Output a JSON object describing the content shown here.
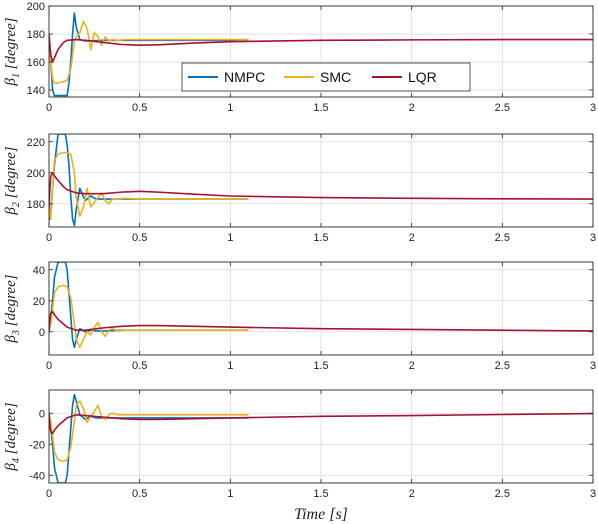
{
  "chart_data": {
    "type": "line",
    "xlabel": "Time [s]",
    "xlim": [
      0,
      3
    ],
    "xticks": [
      0,
      0.5,
      1,
      1.5,
      2,
      2.5,
      3
    ],
    "xticklabels": [
      "0",
      "0.5",
      "1",
      "1.5",
      "2",
      "2.5",
      "3"
    ],
    "grid": true,
    "legend": {
      "placement": "inside first panel, center",
      "entries": [
        "NMPC",
        "SMC",
        "LQR"
      ]
    },
    "colors": {
      "NMPC": "#0072BD",
      "SMC": "#EDB120",
      "LQR": "#A2142F"
    },
    "panels": [
      {
        "ylabel_var": "β",
        "ylabel_sub": "1",
        "ylabel_unit": "[degree]",
        "ylim": [
          135,
          200
        ],
        "yticks": [
          140,
          160,
          180,
          200
        ],
        "yticklabels": [
          "140",
          "160",
          "180",
          "200"
        ],
        "series": [
          {
            "name": "NMPC",
            "x": [
              0,
              0.005,
              0.01,
              0.02,
              0.03,
              0.04,
              0.05,
              0.07,
              0.09,
              0.1,
              0.11,
              0.12,
              0.13,
              0.14,
              0.15,
              0.17,
              0.2,
              0.3,
              0.5,
              1.0,
              1.1
            ],
            "y": [
              178,
              170,
              160,
              140,
              136,
              136,
              136,
              136,
              136,
              136,
              145,
              160,
              180,
              195,
              185,
              176,
              175,
              175.5,
              175.5,
              175.5,
              176
            ]
          },
          {
            "name": "SMC",
            "x": [
              0,
              0.005,
              0.01,
              0.02,
              0.03,
              0.05,
              0.08,
              0.1,
              0.12,
              0.14,
              0.15,
              0.17,
              0.19,
              0.21,
              0.23,
              0.25,
              0.27,
              0.29,
              0.31,
              0.33,
              0.35,
              0.38,
              0.42,
              0.5,
              0.7,
              1.0,
              1.1
            ],
            "y": [
              178,
              170,
              160,
              148,
              145,
              145,
              146,
              147,
              155,
              175,
              178,
              181,
              189,
              184,
              169,
              181,
              178,
              172,
              178,
              175,
              176,
              175.5,
              176,
              176,
              176,
              176,
              176
            ]
          },
          {
            "name": "LQR",
            "x": [
              0,
              0.005,
              0.01,
              0.02,
              0.03,
              0.05,
              0.08,
              0.1,
              0.15,
              0.2,
              0.3,
              0.4,
              0.5,
              0.6,
              0.8,
              1.0,
              1.5,
              2.0,
              2.5,
              3.0
            ],
            "y": [
              180,
              172,
              165,
              160,
              163,
              169,
              174,
              175.5,
              176,
              175.5,
              174,
              172.5,
              172,
              172.3,
              173.5,
              174.5,
              175.5,
              175.8,
              176,
              176
            ]
          }
        ]
      },
      {
        "ylabel_var": "β",
        "ylabel_sub": "2",
        "ylabel_unit": "[degree]",
        "ylim": [
          165,
          225
        ],
        "yticks": [
          180,
          200,
          220
        ],
        "yticklabels": [
          "180",
          "200",
          "220"
        ],
        "series": [
          {
            "name": "NMPC",
            "x": [
              0,
              0.005,
              0.01,
              0.02,
              0.03,
              0.05,
              0.07,
              0.09,
              0.1,
              0.11,
              0.12,
              0.13,
              0.14,
              0.15,
              0.17,
              0.2,
              0.23,
              0.26,
              0.3,
              0.4,
              0.6,
              1.0,
              1.1
            ],
            "y": [
              180,
              170,
              175,
              190,
              205,
              225,
              225,
              225,
              218,
              205,
              185,
              170,
              166,
              176,
              190,
              182,
              185,
              183,
              183,
              183,
              183,
              183,
              183
            ]
          },
          {
            "name": "SMC",
            "x": [
              0,
              0.005,
              0.01,
              0.02,
              0.03,
              0.05,
              0.08,
              0.1,
              0.12,
              0.14,
              0.15,
              0.17,
              0.19,
              0.21,
              0.23,
              0.25,
              0.27,
              0.29,
              0.31,
              0.33,
              0.35,
              0.38,
              0.42,
              0.5,
              0.7,
              1.0,
              1.1
            ],
            "y": [
              182,
              172,
              170,
              190,
              208,
              212,
              213,
              213,
              212,
              200,
              184,
              172,
              178,
              190,
              178,
              181,
              184,
              187,
              182,
              180,
              183,
              183,
              183.5,
              183,
              183,
              183,
              183
            ]
          },
          {
            "name": "LQR",
            "x": [
              0,
              0.005,
              0.01,
              0.02,
              0.03,
              0.05,
              0.08,
              0.1,
              0.15,
              0.2,
              0.3,
              0.4,
              0.5,
              0.6,
              0.8,
              1.0,
              1.5,
              2.0,
              2.5,
              3.0
            ],
            "y": [
              178,
              190,
              198,
              200,
              198,
              195,
              191,
              189,
              187,
              186.5,
              186.5,
              187.5,
              188,
              187.5,
              186.2,
              185,
              184,
              183.5,
              183.2,
              183
            ]
          }
        ]
      },
      {
        "ylabel_var": "β",
        "ylabel_sub": "3",
        "ylabel_unit": "[degree]",
        "ylim": [
          -15,
          45
        ],
        "yticks": [
          0,
          20,
          40
        ],
        "yticklabels": [
          "0",
          "20",
          "40"
        ],
        "series": [
          {
            "name": "NMPC",
            "x": [
              0,
              0.005,
              0.01,
              0.02,
              0.03,
              0.05,
              0.07,
              0.09,
              0.1,
              0.11,
              0.12,
              0.13,
              0.14,
              0.15,
              0.17,
              0.2,
              0.23,
              0.26,
              0.3,
              0.4,
              0.6,
              1.0,
              1.1
            ],
            "y": [
              0,
              5,
              10,
              20,
              35,
              45,
              45,
              45,
              40,
              25,
              10,
              -5,
              -10,
              -5,
              2,
              0,
              1,
              0.5,
              0.5,
              1,
              1,
              1,
              1
            ]
          },
          {
            "name": "SMC",
            "x": [
              0,
              0.005,
              0.01,
              0.02,
              0.03,
              0.05,
              0.08,
              0.1,
              0.12,
              0.14,
              0.15,
              0.17,
              0.19,
              0.21,
              0.23,
              0.25,
              0.27,
              0.29,
              0.31,
              0.33,
              0.35,
              0.38,
              0.42,
              0.5,
              0.7,
              1.0,
              1.1
            ],
            "y": [
              0,
              3,
              5,
              15,
              25,
              29,
              30,
              29,
              22,
              5,
              -5,
              -10,
              -5,
              0,
              -2,
              3,
              6,
              0,
              -3,
              1,
              2,
              0.5,
              1,
              1,
              1,
              1,
              1
            ]
          },
          {
            "name": "LQR",
            "x": [
              0,
              0.005,
              0.01,
              0.02,
              0.03,
              0.05,
              0.08,
              0.1,
              0.15,
              0.2,
              0.3,
              0.4,
              0.5,
              0.6,
              0.8,
              1.0,
              1.5,
              2.0,
              2.5,
              3.0
            ],
            "y": [
              0,
              8,
              12,
              13,
              11,
              8,
              5,
              3,
              1,
              1,
              2.5,
              3.5,
              4,
              4,
              3.5,
              3,
              2,
              1.5,
              1,
              0.5
            ]
          }
        ]
      },
      {
        "ylabel_var": "β",
        "ylabel_sub": "4",
        "ylabel_unit": "[degree]",
        "ylim": [
          -45,
          15
        ],
        "yticks": [
          -40,
          -20,
          0
        ],
        "yticklabels": [
          "-40",
          "-20",
          "0"
        ],
        "series": [
          {
            "name": "NMPC",
            "x": [
              0,
              0.005,
              0.01,
              0.02,
              0.03,
              0.05,
              0.07,
              0.09,
              0.1,
              0.11,
              0.12,
              0.13,
              0.14,
              0.15,
              0.17,
              0.2,
              0.23,
              0.26,
              0.3,
              0.4,
              0.6,
              1.0,
              1.1
            ],
            "y": [
              0,
              -5,
              -10,
              -20,
              -35,
              -45,
              -45,
              -45,
              -40,
              -25,
              -10,
              5,
              12,
              8,
              -1,
              -4,
              -2,
              -3,
              -3,
              -3,
              -3,
              -3,
              -3
            ]
          },
          {
            "name": "SMC",
            "x": [
              0,
              0.005,
              0.01,
              0.02,
              0.03,
              0.05,
              0.08,
              0.1,
              0.12,
              0.14,
              0.15,
              0.17,
              0.19,
              0.21,
              0.23,
              0.25,
              0.27,
              0.29,
              0.31,
              0.33,
              0.35,
              0.38,
              0.42,
              0.5,
              0.7,
              1.0,
              1.1
            ],
            "y": [
              0,
              -3,
              -5,
              -15,
              -25,
              -30,
              -31,
              -30,
              -22,
              -5,
              5,
              8,
              3,
              -6,
              -2,
              1,
              5,
              -2,
              -4,
              -1,
              0,
              -1,
              -1,
              -1,
              -1,
              -1,
              -1
            ]
          },
          {
            "name": "LQR",
            "x": [
              0,
              0.005,
              0.01,
              0.02,
              0.03,
              0.05,
              0.08,
              0.1,
              0.15,
              0.2,
              0.3,
              0.4,
              0.5,
              0.6,
              0.8,
              1.0,
              1.5,
              2.0,
              2.5,
              3.0
            ],
            "y": [
              0,
              -8,
              -12,
              -13,
              -11,
              -8,
              -5,
              -3,
              -1,
              -1.5,
              -2.5,
              -3.5,
              -4,
              -4,
              -3.5,
              -3,
              -2,
              -1.5,
              -0.8,
              -0.2
            ]
          }
        ]
      }
    ]
  }
}
